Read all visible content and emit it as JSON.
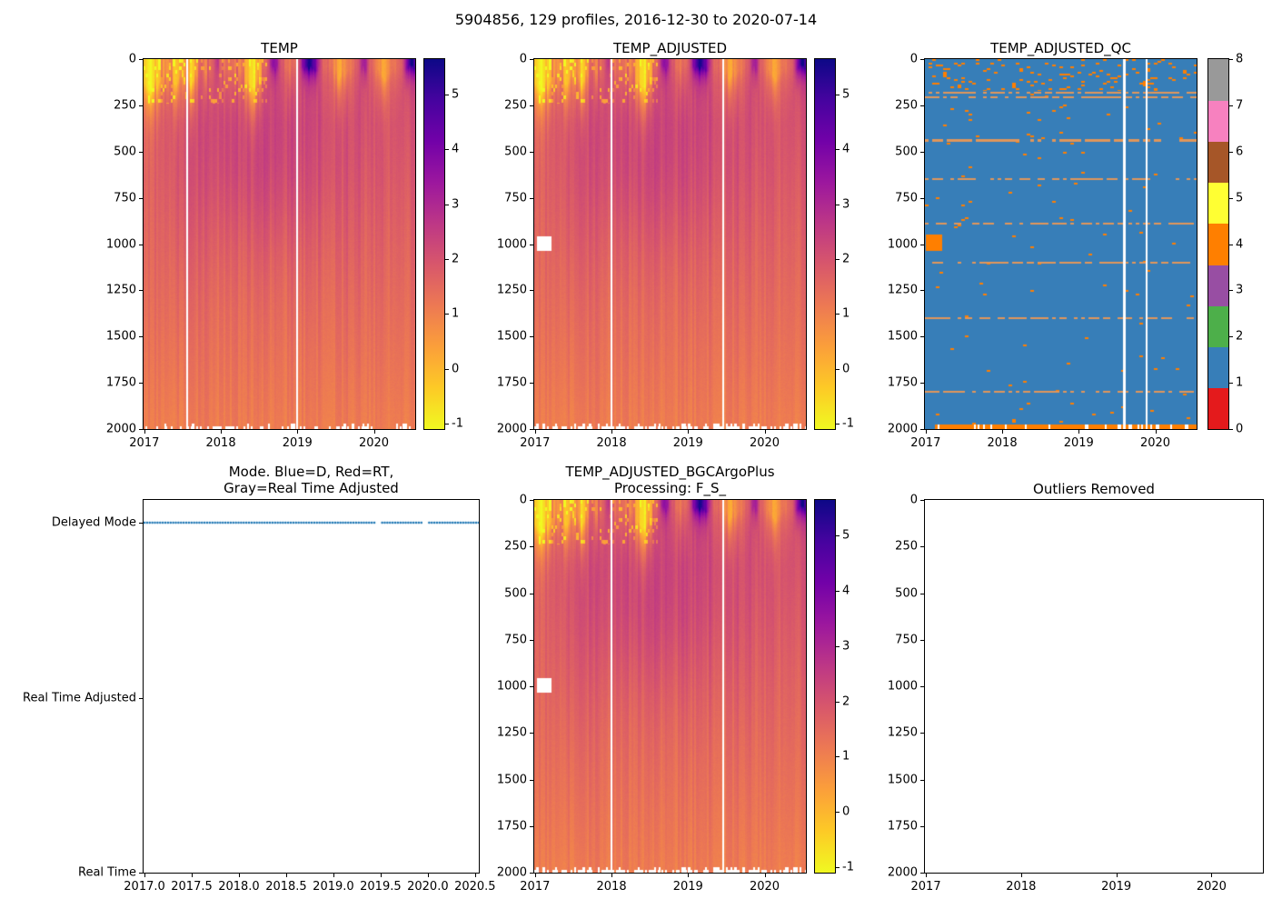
{
  "figure": {
    "title": "5904856, 129 profiles, 2016-12-30 to 2020-07-14",
    "platform_id": "5904856",
    "n_profiles": 129,
    "date_start": "2016-12-30",
    "date_end": "2020-07-14"
  },
  "subplots": {
    "temp": {
      "title": "TEMP"
    },
    "temp_adjusted": {
      "title": "TEMP_ADJUSTED"
    },
    "temp_adjusted_qc": {
      "title": "TEMP_ADJUSTED_QC"
    },
    "mode": {
      "title_line1": "Mode. Blue=D, Red=RT,",
      "title_line2": "Gray=Real Time Adjusted"
    },
    "bgc": {
      "title_line1": "TEMP_ADJUSTED_BGCArgoPlus",
      "title_line2": "Processing: F_S_"
    },
    "outliers": {
      "title": "Outliers Removed"
    }
  },
  "ticks": {
    "depth": [
      "0",
      "250",
      "500",
      "750",
      "1000",
      "1250",
      "1500",
      "1750",
      "2000"
    ],
    "years": [
      "2017",
      "2018",
      "2019",
      "2020"
    ],
    "mode_x": [
      "2017.0",
      "2017.5",
      "2018.0",
      "2018.5",
      "2019.0",
      "2019.5",
      "2020.0",
      "2020.5"
    ],
    "mode_y": [
      "Delayed Mode",
      "Real Time Adjusted",
      "Real Time"
    ],
    "temp_cbar": [
      "5",
      "4",
      "3",
      "2",
      "1",
      "0",
      "-1"
    ],
    "qc_cbar": [
      "8",
      "7",
      "6",
      "5",
      "4",
      "3",
      "2",
      "1",
      "0"
    ]
  },
  "colors": {
    "qc_palette": [
      "#e41a1c",
      "#377eb8",
      "#4daf4a",
      "#984ea3",
      "#ff7f00",
      "#ffff33",
      "#a65628",
      "#f781bf",
      "#999999"
    ],
    "plasma": [
      "#0d0887",
      "#46039f",
      "#7201a8",
      "#9c179e",
      "#bd3786",
      "#d8576b",
      "#ed7953",
      "#fb9f3a",
      "#fdca26",
      "#f0f921"
    ],
    "mode_dot": "#1f77b4",
    "qc_good": "#377eb8",
    "qc_bad": "#ff7f00",
    "qc_line": "#e1965a"
  },
  "chart_data": [
    {
      "type": "heatmap",
      "name": "TEMP",
      "title": "TEMP",
      "x_range": [
        2016.99,
        2020.54
      ],
      "x_ticks": [
        2017,
        2018,
        2019,
        2020
      ],
      "y_range": [
        0,
        2000
      ],
      "y_inverted": true,
      "y_ticks": [
        0,
        250,
        500,
        750,
        1000,
        1250,
        1500,
        1750,
        2000
      ],
      "colormap": "plasma_r",
      "cbar_ticks": [
        5,
        4,
        3,
        2,
        1,
        0,
        -1
      ],
      "vmin": -1.1,
      "vmax": 5.65,
      "n_profiles": 129,
      "pattern": {
        "surface_base": 1.35,
        "warm_events": [
          {
            "t": 2017.95,
            "w": 0.06,
            "a": 1.2
          },
          {
            "t": 2018.7,
            "w": 0.09,
            "a": 2.1
          },
          {
            "t": 2019.16,
            "w": 0.12,
            "a": 4.1
          },
          {
            "t": 2019.87,
            "w": 0.07,
            "a": 1.9
          },
          {
            "t": 2020.5,
            "w": 0.09,
            "a": 4.2
          }
        ],
        "cold_events": [
          {
            "t": 2017.08,
            "w": 0.13,
            "a": 2.3
          },
          {
            "t": 2017.42,
            "w": 0.07,
            "a": 1.4
          },
          {
            "t": 2017.62,
            "w": 0.07,
            "a": 1.6
          },
          {
            "t": 2018.42,
            "w": 0.1,
            "a": 1.9
          },
          {
            "t": 2019.55,
            "w": 0.07,
            "a": 1.1
          },
          {
            "t": 2020.13,
            "w": 0.07,
            "a": 1.0
          }
        ],
        "deep_profile": {
          "t_at_350m": 2.05,
          "t_at_2000m": 1.08,
          "mid_depth_warm_center": 2018.55,
          "mid_depth_warm_amp": 0.38
        },
        "gap_times": [
          2017.55,
          2018.99
        ],
        "masked_region": null,
        "bottom_speckle": 0.3
      }
    },
    {
      "type": "heatmap",
      "name": "TEMP_ADJUSTED",
      "title": "TEMP_ADJUSTED",
      "pattern_same_as": "TEMP",
      "x_range": [
        2016.99,
        2020.54
      ],
      "x_ticks": [
        2017,
        2018,
        2019,
        2020
      ],
      "y_range": [
        0,
        2000
      ],
      "y_inverted": true,
      "colormap": "plasma_r",
      "cbar_ticks": [
        5,
        4,
        3,
        2,
        1,
        0,
        -1
      ],
      "vmin": -1.1,
      "vmax": 5.65,
      "n_profiles": 129,
      "pattern": {
        "gap_times": [
          2017.99,
          2019.45
        ],
        "masked_region": {
          "t": [
            2017.02,
            2017.22
          ],
          "z": [
            958,
            1035
          ]
        },
        "bottom_speckle": 0.55
      }
    },
    {
      "type": "heatmap",
      "name": "TEMP_ADJUSTED_QC",
      "title": "TEMP_ADJUSTED_QC",
      "x_range": [
        2016.99,
        2020.54
      ],
      "x_ticks": [
        2017,
        2018,
        2019,
        2020
      ],
      "y_range": [
        0,
        2000
      ],
      "y_inverted": true,
      "values_discrete": [
        0,
        1,
        2,
        3,
        4,
        5,
        6,
        7,
        8
      ],
      "cbar_ticks": [
        8,
        7,
        6,
        5,
        4,
        3,
        2,
        1,
        0
      ],
      "dominant_flag": 1,
      "flagged_value": 4,
      "n_profiles": 129,
      "flag_features": {
        "surface_speckle_depth_max": 170,
        "surface_speckle_density": 0.07,
        "background_speckle_density": 0.008,
        "flagged_lines_z": [
          180,
          205,
          440,
          650,
          890,
          1100,
          1400,
          1800
        ],
        "flagged_blob": {
          "t": [
            2017.0,
            2017.21
          ],
          "z": [
            950,
            1035
          ]
        },
        "bottom_band": {
          "z": [
            1974,
            2000
          ],
          "t_start": 2017.12
        },
        "gap_times": [
          2019.59,
          2019.88
        ]
      }
    },
    {
      "type": "scatter",
      "name": "mode",
      "title": "Mode. Blue=D, Red=RT, Gray=Real Time Adjusted",
      "x_range": [
        2016.99,
        2020.54
      ],
      "x_ticks": [
        2017.0,
        2017.5,
        2018.0,
        2018.5,
        2019.0,
        2019.5,
        2020.0,
        2020.5
      ],
      "y_categories": [
        "Delayed Mode",
        "Real Time Adjusted",
        "Real Time"
      ],
      "series": [
        {
          "name": "profile-mode",
          "category": "Delayed Mode",
          "n_points": 129,
          "x_start": 2017.0,
          "x_end": 2020.54,
          "gaps": [
            [
              2019.44,
              2019.49
            ],
            [
              2019.94,
              2019.99
            ]
          ]
        }
      ],
      "marker_color": "#1f77b4"
    },
    {
      "type": "heatmap",
      "name": "TEMP_ADJUSTED_BGCArgoPlus",
      "title": "TEMP_ADJUSTED_BGCArgoPlus Processing: F_S_",
      "pattern_same_as": "TEMP",
      "x_range": [
        2016.99,
        2020.54
      ],
      "x_ticks": [
        2017,
        2018,
        2019,
        2020
      ],
      "y_range": [
        0,
        2000
      ],
      "y_inverted": true,
      "colormap": "plasma_r",
      "cbar_ticks": [
        5,
        4,
        3,
        2,
        1,
        0,
        -1
      ],
      "vmin": -1.1,
      "vmax": 5.65,
      "n_profiles": 129,
      "pattern": {
        "gap_times": [
          2017.99,
          2019.45
        ],
        "masked_region": {
          "t": [
            2017.02,
            2017.22
          ],
          "z": [
            958,
            1035
          ]
        },
        "bottom_speckle": 0.55
      }
    },
    {
      "type": "scatter",
      "name": "outliers_removed",
      "title": "Outliers Removed",
      "x_range": [
        2016.99,
        2020.54
      ],
      "x_ticks": [
        2017,
        2018,
        2019,
        2020
      ],
      "y_range": [
        0,
        2000
      ],
      "y_inverted": true,
      "y_ticks": [
        0,
        250,
        500,
        750,
        1000,
        1250,
        1500,
        1750,
        2000
      ],
      "points": []
    }
  ]
}
